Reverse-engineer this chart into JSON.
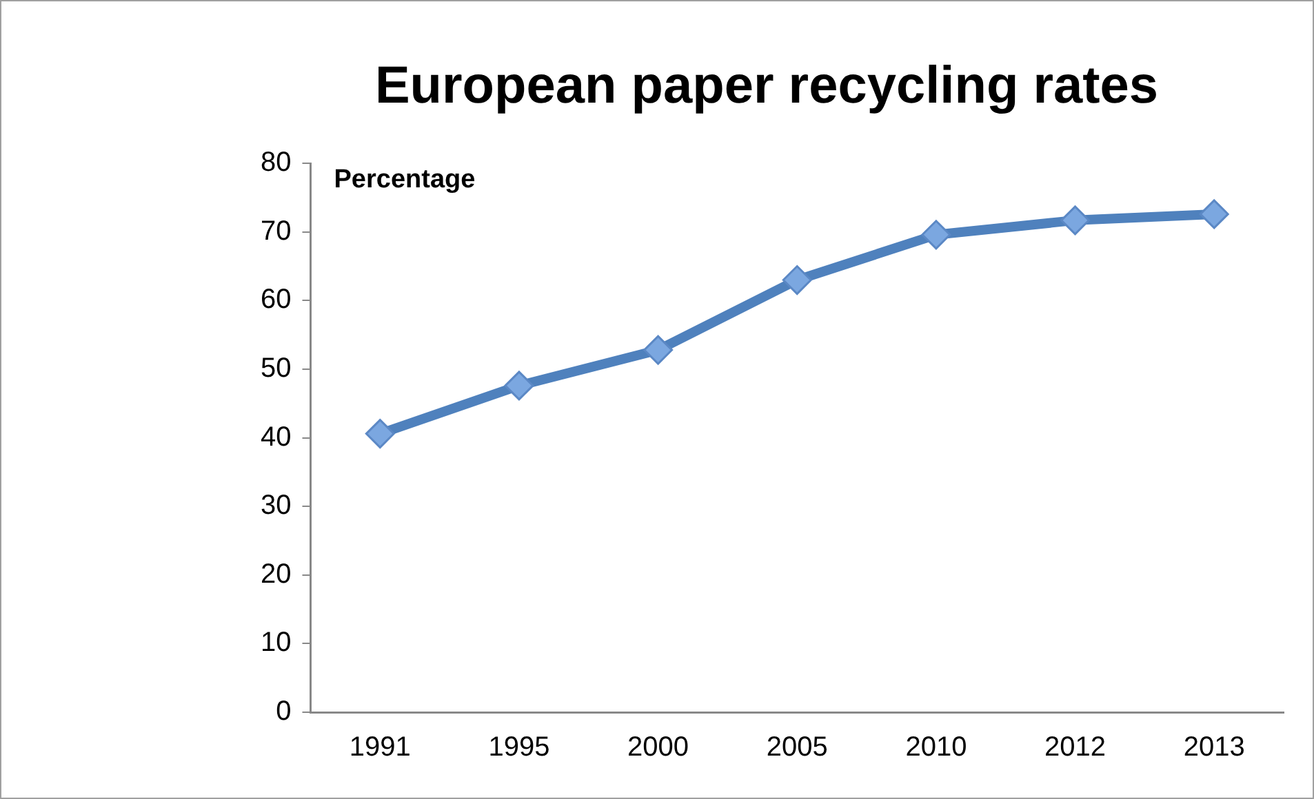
{
  "chart_data": {
    "type": "line",
    "title": "European paper recycling rates",
    "ylabel": "Percentage",
    "categories": [
      "1991",
      "1995",
      "2000",
      "2005",
      "2010",
      "2012",
      "2013"
    ],
    "series": [
      {
        "color": "#4f81bd",
        "values": [
          40.6,
          47.6,
          52.8,
          63,
          69.6,
          71.7,
          72.6
        ]
      }
    ],
    "ylim": [
      0,
      80
    ],
    "yticks": [
      0,
      10,
      20,
      30,
      40,
      50,
      60,
      70,
      80
    ],
    "grid": false,
    "legend": false,
    "marker": "diamond",
    "line_style": "solid"
  }
}
